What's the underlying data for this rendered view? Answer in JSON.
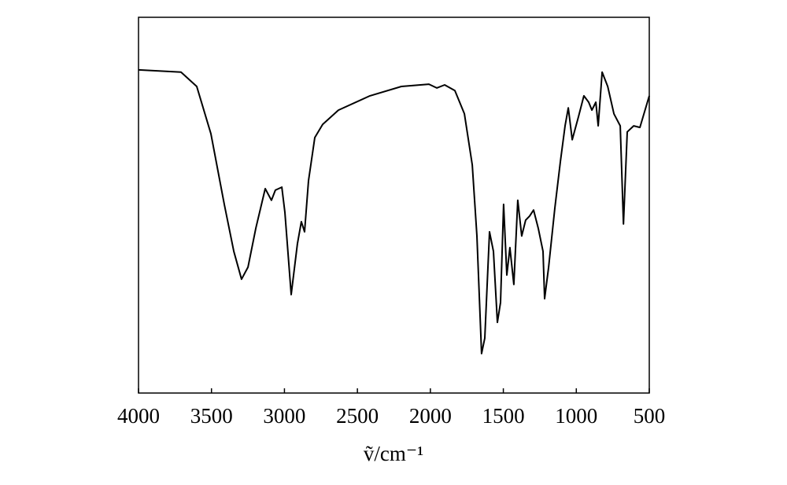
{
  "chart_data": {
    "type": "line",
    "xlabel": "ṽ/cm⁻¹",
    "xlim": [
      4000,
      500
    ],
    "xticks": [
      4000,
      3500,
      3000,
      2500,
      2000,
      1500,
      1000,
      500
    ],
    "ylim": [
      0,
      100
    ],
    "series": [
      {
        "color": "#000000",
        "x": [
          4000,
          3709,
          3601,
          3504,
          3412,
          3347,
          3294,
          3250,
          3196,
          3132,
          3089,
          3062,
          3018,
          2997,
          2954,
          2911,
          2884,
          2862,
          2835,
          2792,
          2738,
          2630,
          2414,
          2199,
          2010,
          1956,
          1902,
          1832,
          1767,
          1713,
          1681,
          1649,
          1627,
          1595,
          1568,
          1541,
          1519,
          1498,
          1476,
          1455,
          1428,
          1401,
          1374,
          1347,
          1320,
          1293,
          1261,
          1228,
          1217,
          1190,
          1147,
          1109,
          1077,
          1055,
          1028,
          985,
          948,
          915,
          893,
          866,
          850,
          823,
          785,
          742,
          699,
          677,
          651,
          607,
          564,
          500
        ],
        "values": [
          86.0,
          85.4,
          81.6,
          69.0,
          50.2,
          37.7,
          30.3,
          33.5,
          43.9,
          54.4,
          51.3,
          54.0,
          54.8,
          48.1,
          26.2,
          39.7,
          45.6,
          42.9,
          56.5,
          68.0,
          71.5,
          75.3,
          79.1,
          81.6,
          82.2,
          81.2,
          82.0,
          80.5,
          74.3,
          60.7,
          41.8,
          10.5,
          14.6,
          42.9,
          37.7,
          18.8,
          24.1,
          50.2,
          31.4,
          38.7,
          28.9,
          51.3,
          41.8,
          46.0,
          47.1,
          48.7,
          43.9,
          37.7,
          25.1,
          33.5,
          49.2,
          61.7,
          71.1,
          75.9,
          67.4,
          73.6,
          79.1,
          77.4,
          75.3,
          77.4,
          71.1,
          85.4,
          81.6,
          74.3,
          71.1,
          45.0,
          69.5,
          71.1,
          70.7,
          79.1
        ]
      }
    ]
  }
}
